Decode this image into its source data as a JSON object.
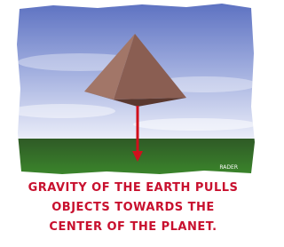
{
  "image": {
    "credit": "RADER"
  },
  "caption": {
    "lines": [
      "GRAVITY OF THE EARTH PULLS",
      "OBJECTS TOWARDS THE",
      "CENTER OF THE PLANET."
    ]
  }
}
